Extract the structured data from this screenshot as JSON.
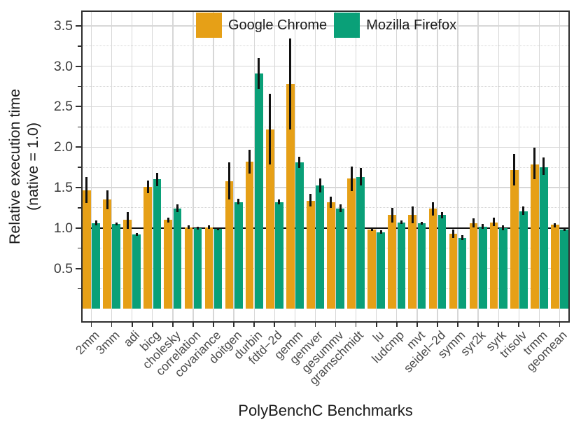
{
  "chart_data": {
    "type": "bar",
    "title": "",
    "xlabel": "PolyBenchC Benchmarks",
    "ylabel": "Relative execution time (native = 1.0)",
    "ylabel_line1": "Relative execution time",
    "ylabel_line2": "(native = 1.0)",
    "categories": [
      "2mm",
      "3mm",
      "adi",
      "bicg",
      "cholesky",
      "correlation",
      "covariance",
      "doitgen",
      "durbin",
      "fdtd−2d",
      "gemm",
      "gemver",
      "gesummv",
      "gramschmidt",
      "lu",
      "ludcmp",
      "mvt",
      "seidel−2d",
      "symm",
      "syr2k",
      "syrk",
      "trisolv",
      "trmm",
      "geomean"
    ],
    "series": [
      {
        "name": "Google Chrome",
        "color": "#E6A017",
        "values": [
          1.47,
          1.35,
          1.1,
          1.51,
          1.1,
          1.01,
          1.01,
          1.58,
          1.82,
          2.22,
          2.78,
          1.34,
          1.32,
          1.61,
          0.98,
          1.16,
          1.16,
          1.24,
          0.93,
          1.06,
          1.07,
          1.72,
          1.79,
          1.04
        ],
        "err_low": [
          1.31,
          1.23,
          0.99,
          1.43,
          1.07,
          0.99,
          0.99,
          1.35,
          1.67,
          1.79,
          2.22,
          1.27,
          1.25,
          1.46,
          0.96,
          1.07,
          1.06,
          1.15,
          0.88,
          1.01,
          1.02,
          1.53,
          1.6,
          1.01
        ],
        "err_high": [
          1.63,
          1.47,
          1.2,
          1.59,
          1.13,
          1.03,
          1.03,
          1.81,
          1.97,
          2.66,
          3.34,
          1.42,
          1.39,
          1.76,
          1.0,
          1.25,
          1.27,
          1.32,
          0.98,
          1.12,
          1.13,
          1.92,
          1.99,
          1.06
        ]
      },
      {
        "name": "Mozilla Firefox",
        "color": "#0AA078",
        "values": [
          1.06,
          1.05,
          0.92,
          1.6,
          1.24,
          1.0,
          0.99,
          1.32,
          2.91,
          1.32,
          1.81,
          1.53,
          1.24,
          1.63,
          0.95,
          1.07,
          1.06,
          1.16,
          0.88,
          1.02,
          1.0,
          1.21,
          1.75,
          0.98
        ],
        "err_low": [
          1.03,
          1.03,
          0.9,
          1.52,
          1.2,
          0.98,
          0.97,
          1.29,
          2.72,
          1.29,
          1.74,
          1.44,
          1.2,
          1.53,
          0.93,
          1.05,
          1.04,
          1.12,
          0.85,
          0.99,
          0.97,
          1.16,
          1.66,
          0.96
        ],
        "err_high": [
          1.09,
          1.07,
          0.94,
          1.68,
          1.29,
          1.02,
          1.01,
          1.36,
          3.1,
          1.35,
          1.88,
          1.61,
          1.29,
          1.74,
          0.97,
          1.09,
          1.08,
          1.2,
          0.91,
          1.05,
          1.03,
          1.27,
          1.87,
          1.0
        ]
      }
    ],
    "y_ticks": [
      0.5,
      1.0,
      1.5,
      2.0,
      2.5,
      3.0,
      3.5
    ],
    "y_tick_labels": [
      "0.5",
      "1.0",
      "1.5",
      "2.0",
      "2.5",
      "3.0",
      "3.5"
    ],
    "y_minor_ticks": [
      0.25,
      0.75,
      1.25,
      1.75,
      2.25,
      2.75,
      3.25
    ],
    "ylim": [
      -0.17,
      3.69
    ],
    "reference_line": 1.0,
    "grid": true,
    "error_bars": true,
    "legend_position": "top-center",
    "colors": {
      "grid": "#d7d7d7",
      "minor_grid": "#d4d4d4",
      "frame": "#2e2e2e",
      "error_bar": "#111111",
      "reference_line": "#111111",
      "tick": "#2e2e2e"
    }
  }
}
